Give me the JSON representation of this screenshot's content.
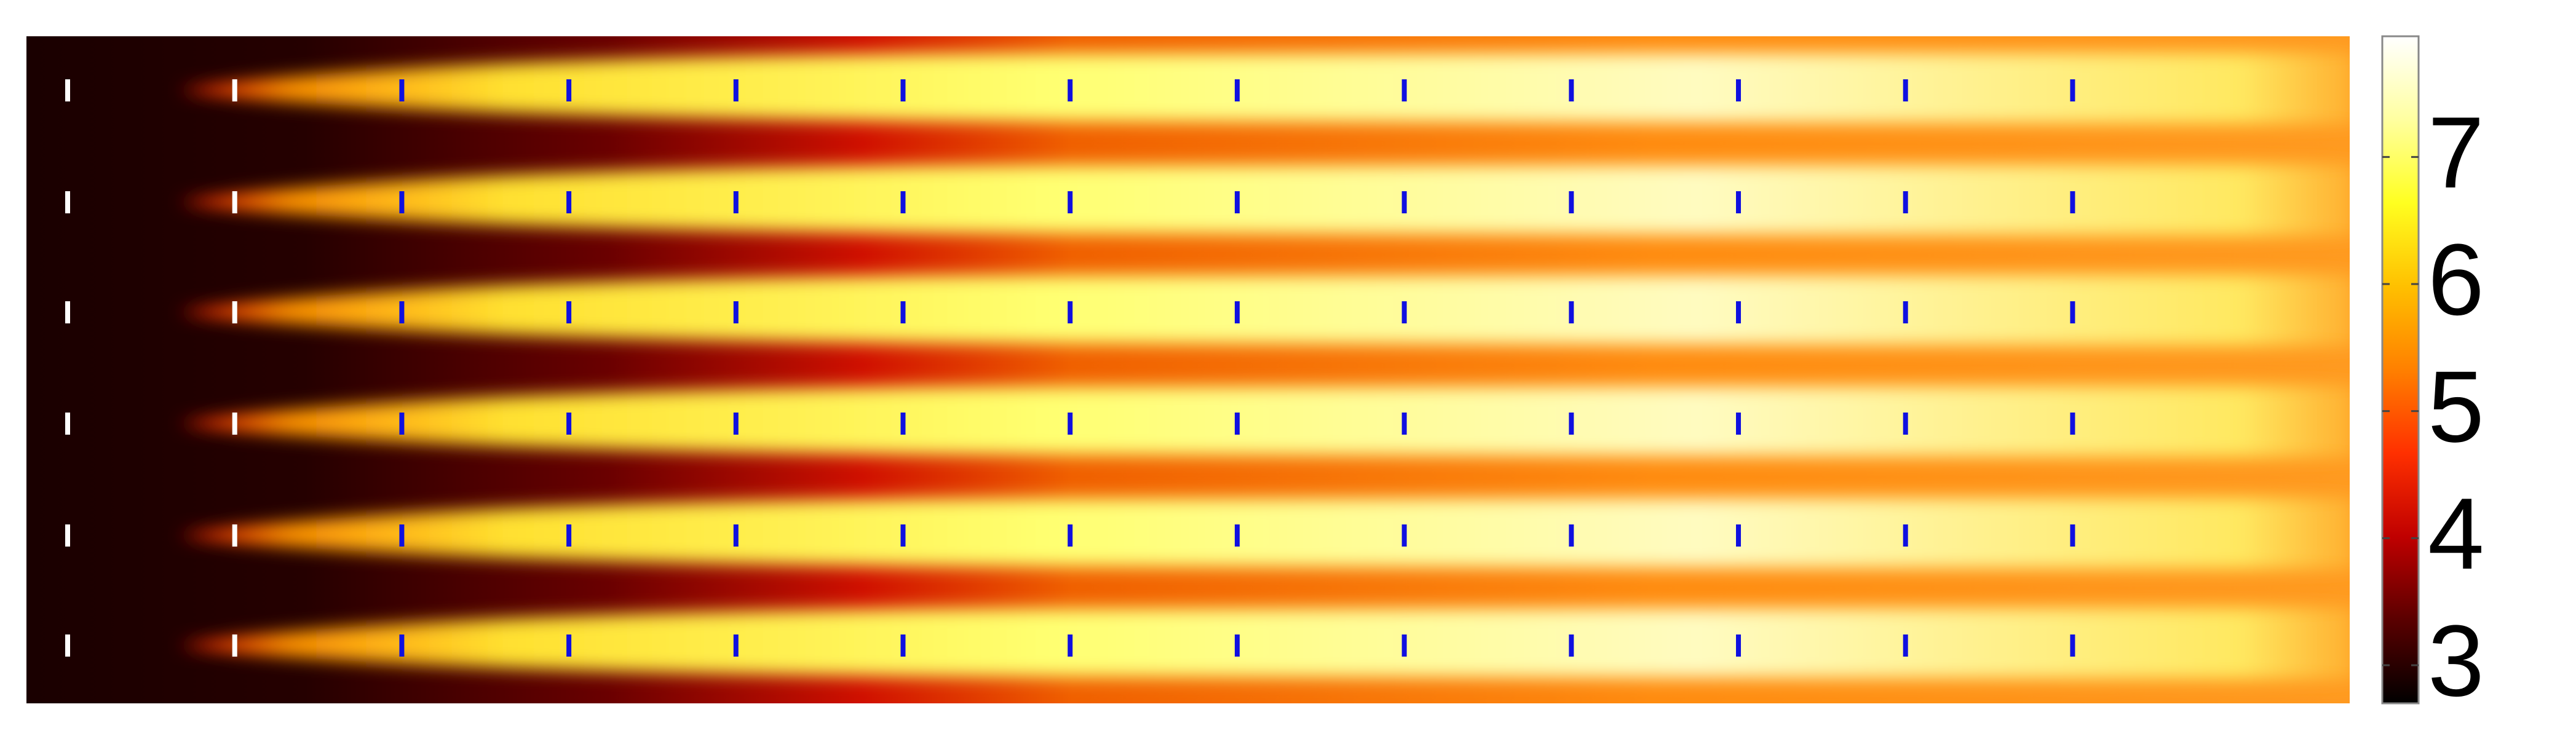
{
  "chart_data": {
    "type": "heatmap",
    "colormap": "hot",
    "clim": [
      2.7,
      7.95
    ],
    "cticks": [
      3,
      4,
      5,
      6,
      7
    ]
  }
}
